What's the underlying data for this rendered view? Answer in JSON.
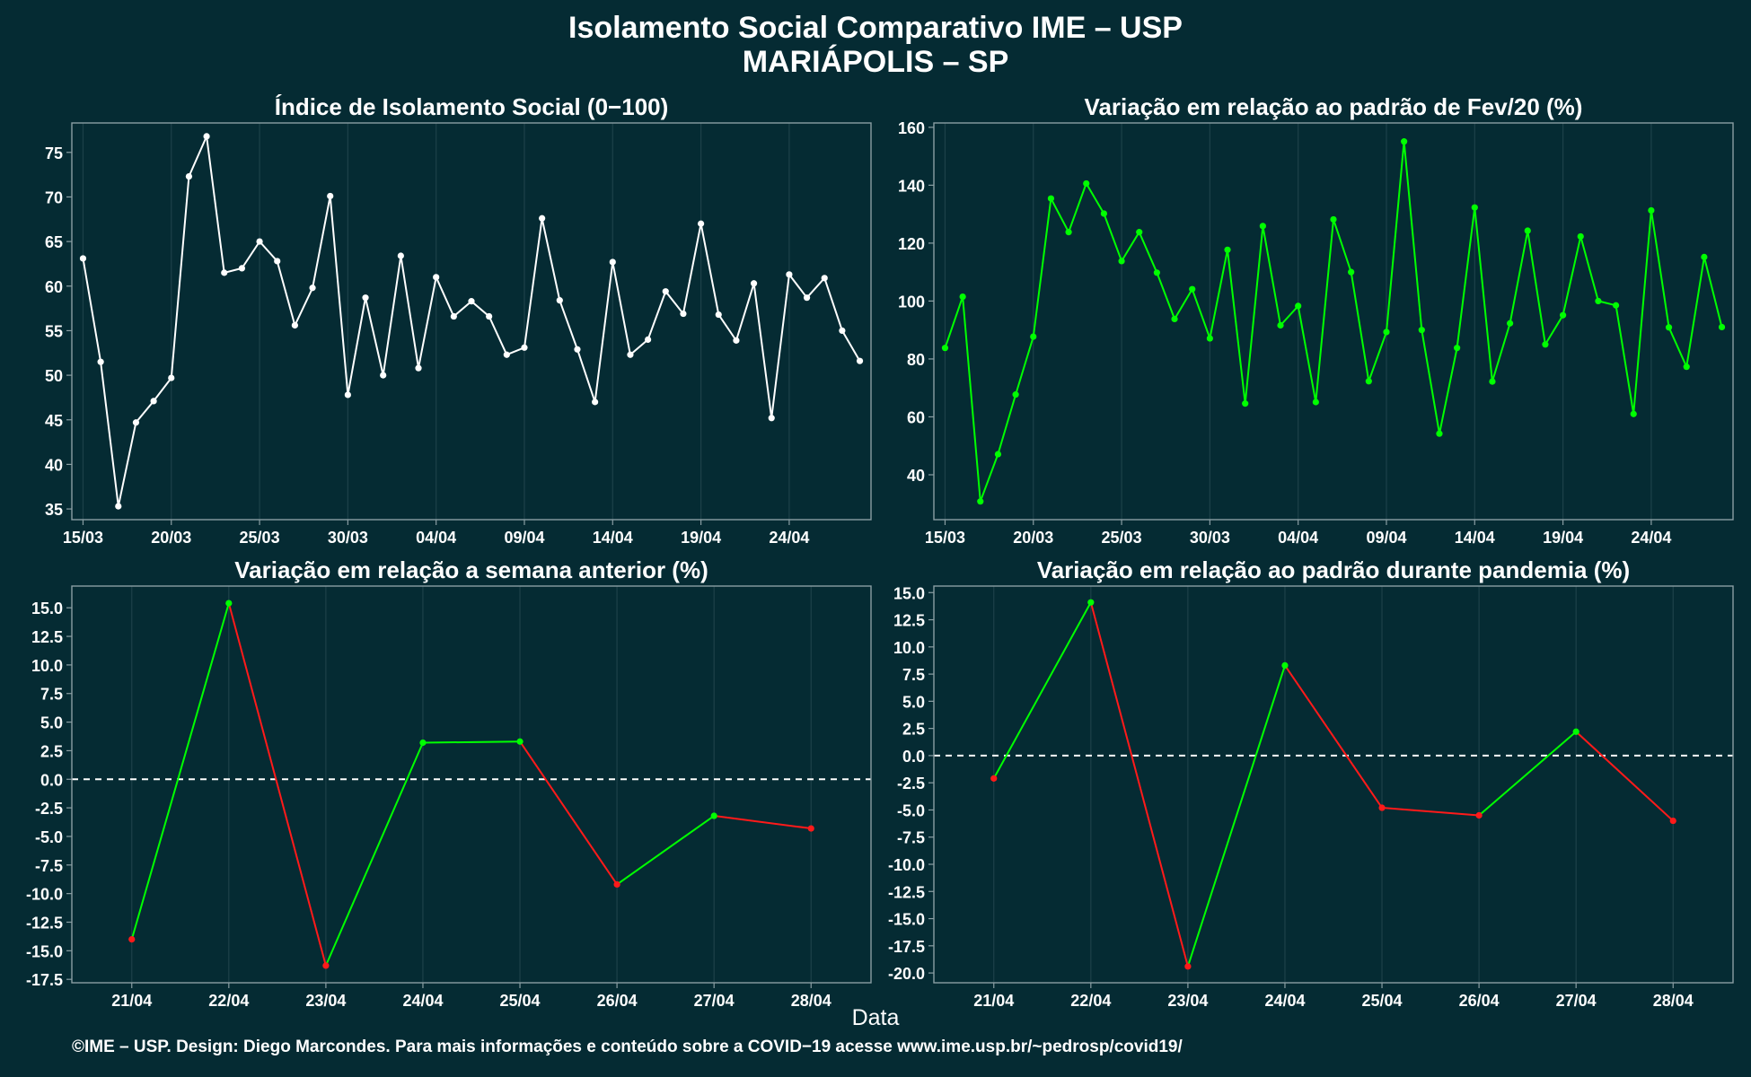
{
  "header": {
    "title_line1": "Isolamento Social Comparativo IME – USP",
    "title_line2": "MARIÁPOLIS – SP"
  },
  "footer": {
    "credits": "©IME – USP. Design: Diego Marcondes. Para mais informações e conteúdo sobre a COVID−19 acesse www.ime.usp.br/~pedrosp/covid19/"
  },
  "xaxis_title": "Data",
  "colors": {
    "background": "#052b33",
    "panel_border": "#8a9ea3",
    "grid": "#1d4149",
    "white_series": "#ffffff",
    "green": "#00ff00",
    "red": "#ff1a1a",
    "zero_line": "#ffffff"
  },
  "chart_data": [
    {
      "type": "line",
      "title": "Índice de Isolamento Social (0−100)",
      "xlabel": "",
      "ylabel": "",
      "x": [
        "15/03",
        "16/03",
        "17/03",
        "18/03",
        "19/03",
        "20/03",
        "21/03",
        "22/03",
        "23/03",
        "24/03",
        "25/03",
        "26/03",
        "27/03",
        "28/03",
        "29/03",
        "30/03",
        "31/03",
        "01/04",
        "02/04",
        "03/04",
        "04/04",
        "05/04",
        "06/04",
        "07/04",
        "08/04",
        "09/04",
        "10/04",
        "11/04",
        "12/04",
        "13/04",
        "14/04",
        "15/04",
        "16/04",
        "17/04",
        "18/04",
        "19/04",
        "20/04",
        "21/04",
        "22/04",
        "23/04",
        "24/04",
        "25/04",
        "26/04",
        "27/04",
        "28/04"
      ],
      "series": [
        {
          "color": "#ffffff",
          "values": [
            63.1,
            51.5,
            35.3,
            44.7,
            47.1,
            49.7,
            72.3,
            76.8,
            61.5,
            62.0,
            65.0,
            62.8,
            55.6,
            59.8,
            70.1,
            47.8,
            58.7,
            50.0,
            63.4,
            50.8,
            61.0,
            56.6,
            58.3,
            56.6,
            52.3,
            53.1,
            67.6,
            58.4,
            52.9,
            47.0,
            62.7,
            52.3,
            54.0,
            59.4,
            56.9,
            67.0,
            56.8,
            53.9,
            60.3,
            45.2,
            61.3,
            58.7,
            60.9,
            55.0,
            51.6
          ]
        }
      ],
      "xticks": [
        "15/03",
        "20/03",
        "25/03",
        "30/03",
        "04/04",
        "09/04",
        "14/04",
        "19/04",
        "24/04"
      ],
      "yticks": [
        35,
        40,
        45,
        50,
        55,
        60,
        65,
        70,
        75
      ],
      "ylim": [
        33.8,
        78.3
      ],
      "grid": true
    },
    {
      "type": "line",
      "title": "Variação em relação ao padrão de Fev/20 (%)",
      "xlabel": "",
      "ylabel": "",
      "x": [
        "15/03",
        "16/03",
        "17/03",
        "18/03",
        "19/03",
        "20/03",
        "21/03",
        "22/03",
        "23/03",
        "24/03",
        "25/03",
        "26/03",
        "27/03",
        "28/03",
        "29/03",
        "30/03",
        "31/03",
        "01/04",
        "02/04",
        "03/04",
        "04/04",
        "05/04",
        "06/04",
        "07/04",
        "08/04",
        "09/04",
        "10/04",
        "11/04",
        "12/04",
        "13/04",
        "14/04",
        "15/04",
        "16/04",
        "17/04",
        "18/04",
        "19/04",
        "20/04",
        "21/04",
        "22/04",
        "23/04",
        "24/04",
        "25/04",
        "26/04",
        "27/04",
        "28/04"
      ],
      "series": [
        {
          "color": "#00ff00",
          "values": [
            83.8,
            101.5,
            30.8,
            47.1,
            67.7,
            87.7,
            135.4,
            123.8,
            140.6,
            130.2,
            113.8,
            123.8,
            109.8,
            93.8,
            104.1,
            87.1,
            117.7,
            64.6,
            125.9,
            91.6,
            98.3,
            65.1,
            128.2,
            110.0,
            72.3,
            89.3,
            155.1,
            90.0,
            54.2,
            83.8,
            132.3,
            72.2,
            92.3,
            124.3,
            85.0,
            95.1,
            122.3,
            100.0,
            98.5,
            61.0,
            131.3,
            90.9,
            77.3,
            115.2,
            91.0
          ]
        }
      ],
      "xticks": [
        "15/03",
        "20/03",
        "25/03",
        "30/03",
        "04/04",
        "09/04",
        "14/04",
        "19/04",
        "24/04"
      ],
      "yticks": [
        40,
        60,
        80,
        100,
        120,
        140,
        160
      ],
      "ylim": [
        24.5,
        161.5
      ],
      "grid": true
    },
    {
      "type": "line",
      "title": "Variação em relação a semana anterior (%)",
      "xlabel": "",
      "ylabel": "",
      "x": [
        "21/04",
        "22/04",
        "23/04",
        "24/04",
        "25/04",
        "26/04",
        "27/04",
        "28/04"
      ],
      "series": [
        {
          "values": [
            -14.0,
            15.4,
            -16.3,
            3.2,
            3.3,
            -9.2,
            -3.2,
            -4.3
          ]
        }
      ],
      "segment_colors": "green when rising, red when falling",
      "reference_line": 0,
      "xticks": [
        "21/04",
        "22/04",
        "23/04",
        "24/04",
        "25/04",
        "26/04",
        "27/04",
        "28/04"
      ],
      "yticks": [
        -17.5,
        -15.0,
        -12.5,
        -10.0,
        -7.5,
        -5.0,
        -2.5,
        0.0,
        2.5,
        5.0,
        7.5,
        10.0,
        12.5,
        15.0
      ],
      "ylim": [
        -17.8,
        16.9
      ],
      "grid": true
    },
    {
      "type": "line",
      "title": "Variação em relação ao padrão durante pandemia (%)",
      "xlabel": "",
      "ylabel": "",
      "x": [
        "21/04",
        "22/04",
        "23/04",
        "24/04",
        "25/04",
        "26/04",
        "27/04",
        "28/04"
      ],
      "series": [
        {
          "values": [
            -2.1,
            14.1,
            -19.4,
            8.3,
            -4.8,
            -5.5,
            2.2,
            -6.0
          ]
        }
      ],
      "segment_colors": "green when rising, red when falling",
      "reference_line": 0,
      "xticks": [
        "21/04",
        "22/04",
        "23/04",
        "24/04",
        "25/04",
        "26/04",
        "27/04",
        "28/04"
      ],
      "yticks": [
        -20.0,
        -17.5,
        -15.0,
        -12.5,
        -10.0,
        -7.5,
        -5.0,
        -2.5,
        0.0,
        2.5,
        5.0,
        7.5,
        10.0,
        12.5,
        15.0
      ],
      "ylim": [
        -20.9,
        15.6
      ],
      "grid": true
    }
  ]
}
